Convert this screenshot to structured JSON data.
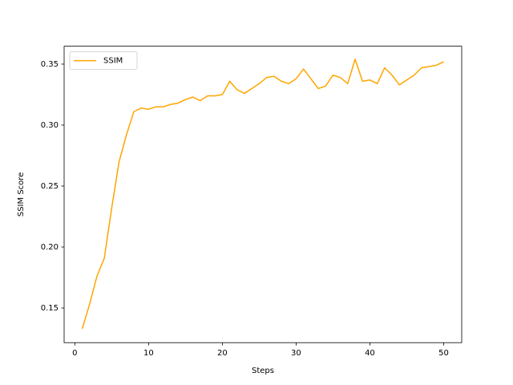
{
  "chart_data": {
    "type": "line",
    "x_label": "Steps",
    "y_label": "SSIM Score",
    "x": [
      1,
      2,
      3,
      4,
      5,
      6,
      7,
      8,
      9,
      10,
      11,
      12,
      13,
      14,
      15,
      16,
      17,
      18,
      19,
      20,
      21,
      22,
      23,
      24,
      25,
      26,
      27,
      28,
      29,
      30,
      31,
      32,
      33,
      34,
      35,
      36,
      37,
      38,
      39,
      40,
      41,
      42,
      43,
      44,
      45,
      46,
      47,
      48,
      49,
      50
    ],
    "series": [
      {
        "name": "SSIM",
        "color": "#ffa500",
        "values": [
          0.133,
          0.153,
          0.176,
          0.191,
          0.232,
          0.27,
          0.292,
          0.311,
          0.314,
          0.313,
          0.315,
          0.315,
          0.317,
          0.318,
          0.321,
          0.323,
          0.32,
          0.324,
          0.324,
          0.325,
          0.336,
          0.329,
          0.326,
          0.33,
          0.334,
          0.339,
          0.34,
          0.336,
          0.334,
          0.338,
          0.346,
          0.338,
          0.33,
          0.332,
          0.341,
          0.339,
          0.334,
          0.354,
          0.336,
          0.337,
          0.334,
          0.347,
          0.341,
          0.333,
          0.337,
          0.341,
          0.347,
          0.348,
          0.349,
          0.352
        ]
      }
    ],
    "xlim": [
      -1.45,
      52.45
    ],
    "xticks": [
      0,
      10,
      20,
      30,
      40,
      50
    ],
    "ylim": [
      0.1216,
      0.3647
    ],
    "yticks": [
      0.15,
      {
        "value": 0.2,
        "label": "0.20"
      },
      0.25,
      {
        "value": 0.3,
        "label": "0.30"
      },
      0.35
    ],
    "legend": "upper left"
  }
}
